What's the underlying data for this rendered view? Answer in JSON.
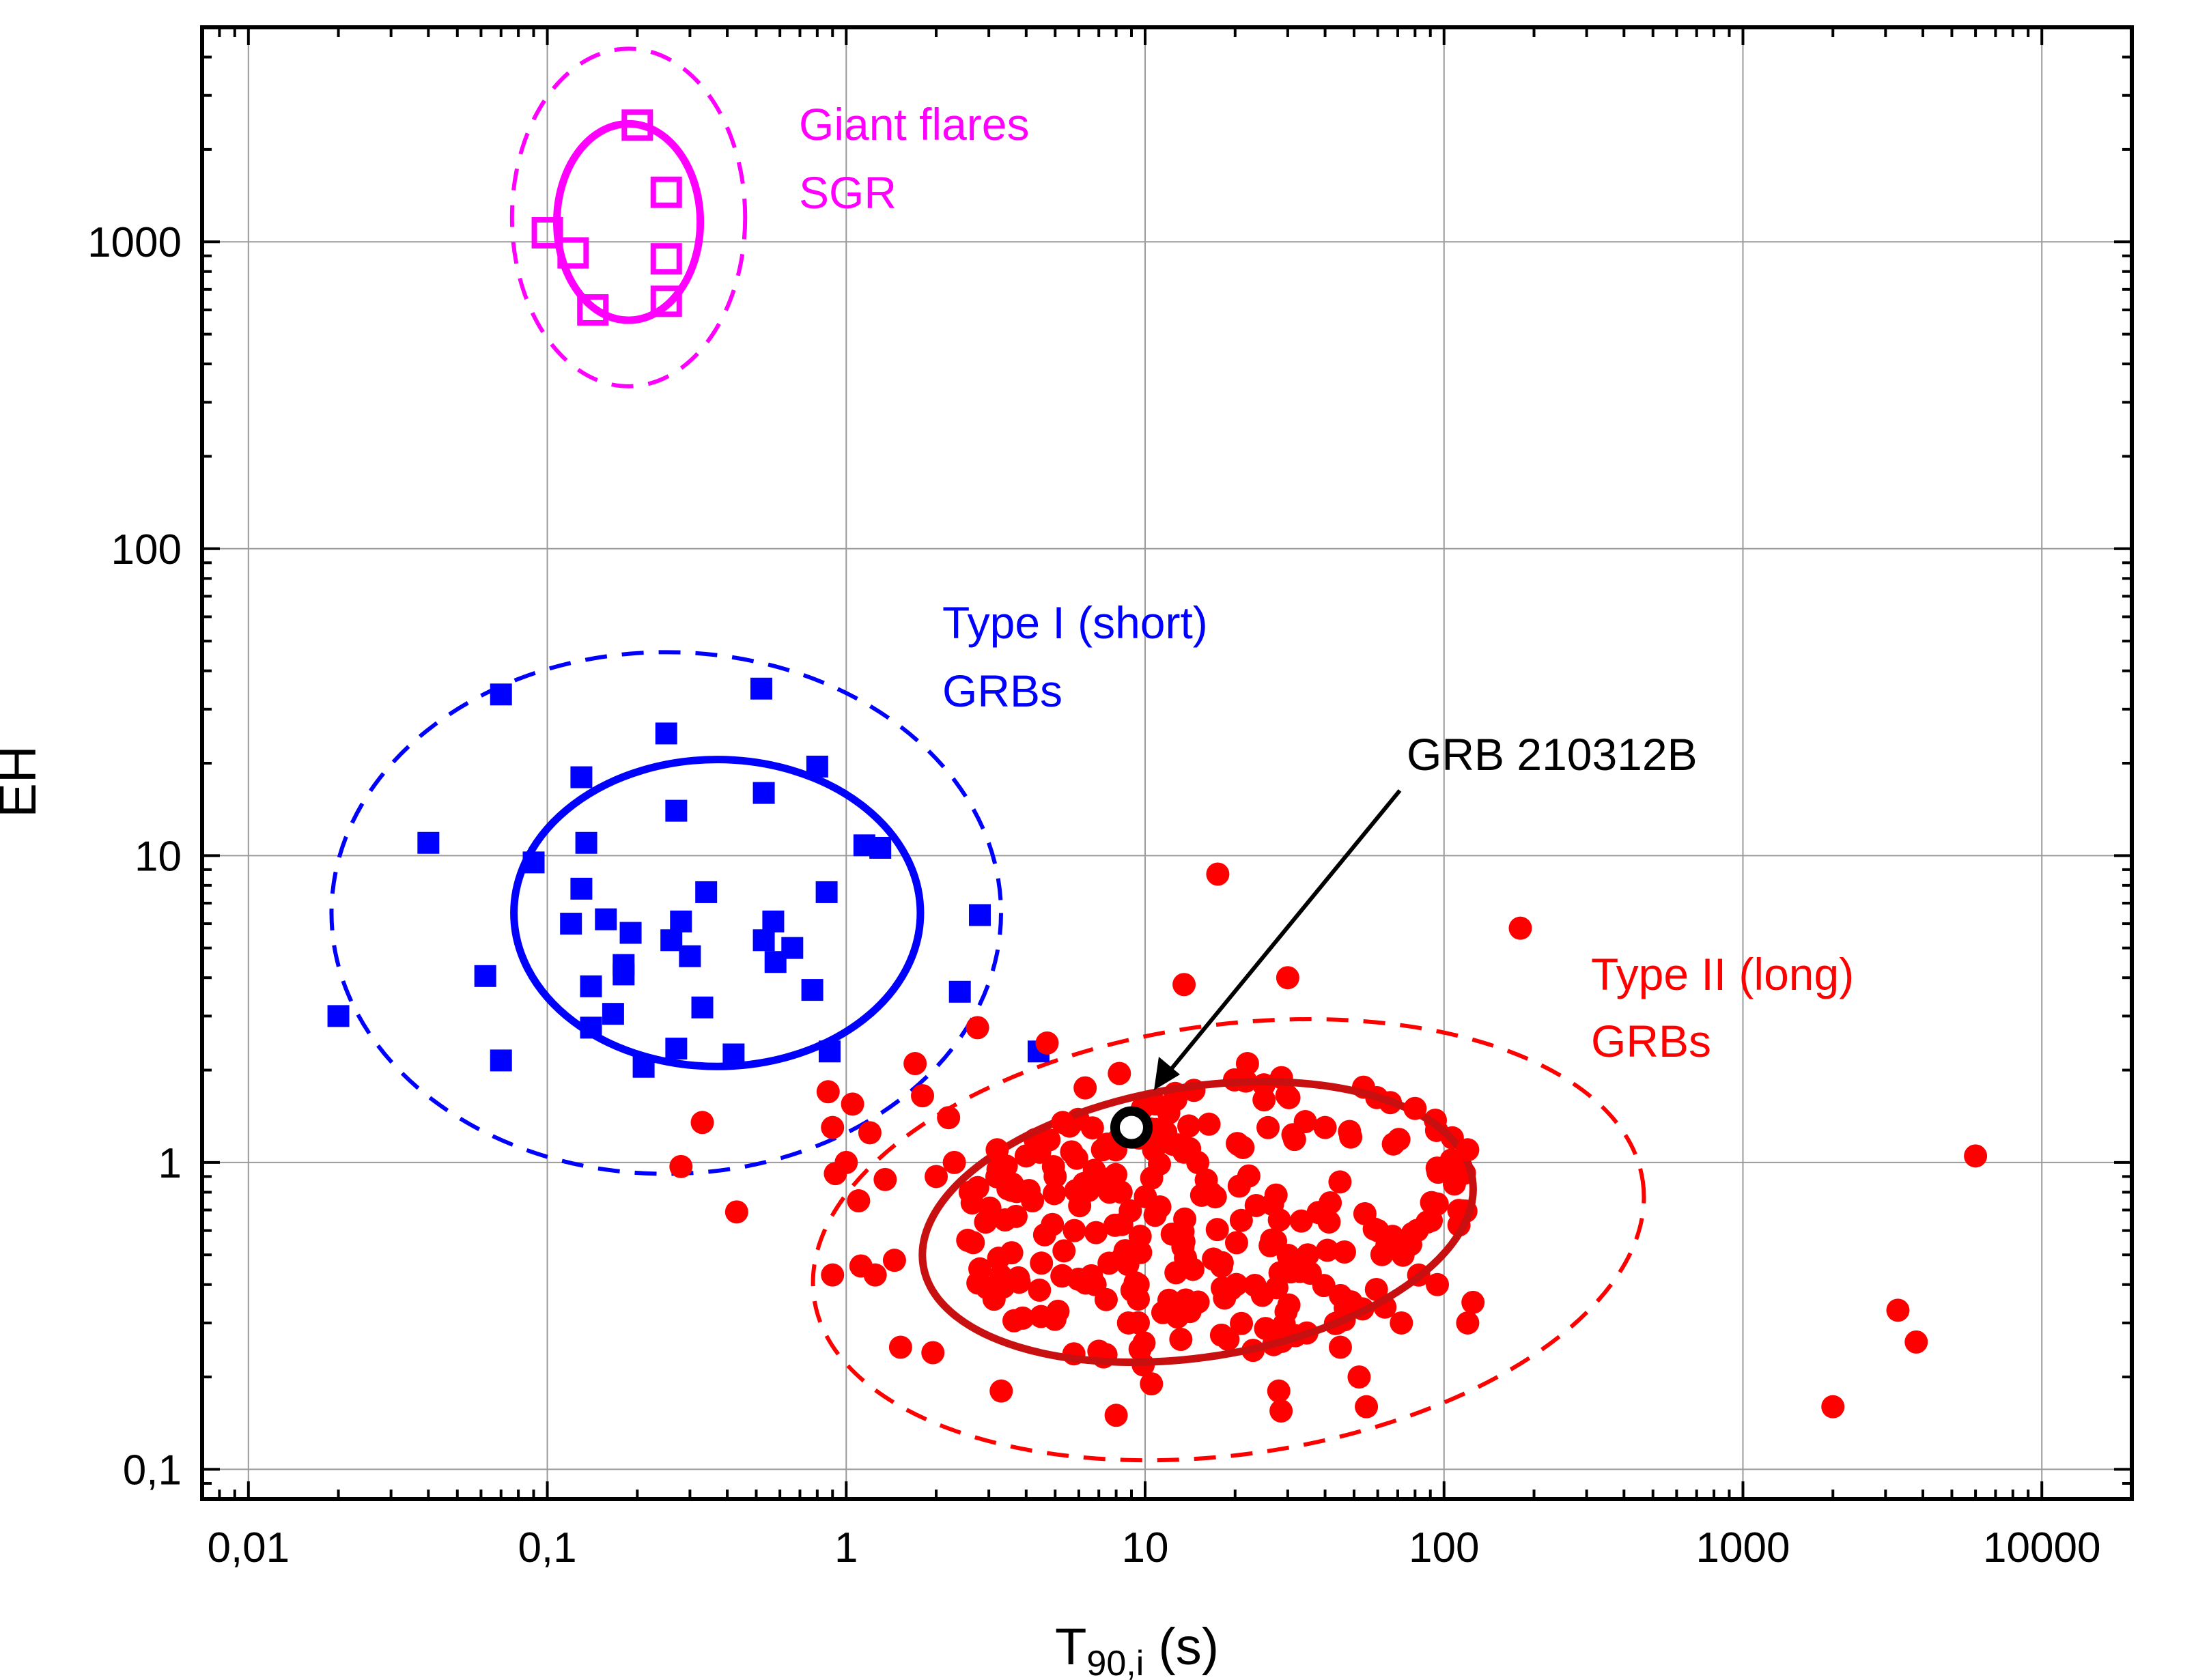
{
  "chart_data": {
    "type": "scatter",
    "xscale": "log",
    "yscale": "log",
    "xlim": [
      0.007,
      20000
    ],
    "ylim": [
      0.08,
      5000
    ],
    "grid": true,
    "xlabel_main": "T",
    "xlabel_sub": "90,i",
    "xlabel_unit": " (s)",
    "ylabel": "EH",
    "x_ticks": [
      {
        "value": 0.01,
        "label": "0,01"
      },
      {
        "value": 0.1,
        "label": "0,1"
      },
      {
        "value": 1,
        "label": "1"
      },
      {
        "value": 10,
        "label": "10"
      },
      {
        "value": 100,
        "label": "100"
      },
      {
        "value": 1000,
        "label": "1000"
      },
      {
        "value": 10000,
        "label": "10000"
      }
    ],
    "y_ticks": [
      {
        "value": 0.1,
        "label": "0,1"
      },
      {
        "value": 1,
        "label": "1"
      },
      {
        "value": 10,
        "label": "10"
      },
      {
        "value": 100,
        "label": "100"
      },
      {
        "value": 1000,
        "label": "1000"
      }
    ],
    "colors": {
      "sgr": "#ff00ff",
      "short": "#0000ff",
      "long": "#ff0000",
      "long_ellipse": "#c81010",
      "grb": "#000000"
    },
    "annotations": {
      "sgr_line1": "Giant flares",
      "sgr_line2": "SGR",
      "short_line1": "Type I (short)",
      "short_line2": "GRBs",
      "long_line1": "Type II (long)",
      "long_line2": "GRBs",
      "grb": "GRB 210312B"
    },
    "highlight_point": {
      "name": "GRB 210312B",
      "x": 9.0,
      "y": 1.3
    },
    "ellipses": [
      {
        "name": "sgr-1sigma",
        "series": "sgr",
        "center": [
          0.187,
          1160
        ],
        "rx_dex": 0.24,
        "ry_dex": 0.32,
        "angle_deg": 0,
        "style": "solid"
      },
      {
        "name": "sgr-2sigma",
        "series": "sgr",
        "center": [
          0.187,
          1200
        ],
        "rx_dex": 0.39,
        "ry_dex": 0.55,
        "angle_deg": 0,
        "style": "dashed"
      },
      {
        "name": "short-1sigma",
        "series": "short",
        "center": [
          0.37,
          6.5
        ],
        "rx_dex": 0.68,
        "ry_dex": 0.5,
        "angle_deg": 0,
        "style": "solid"
      },
      {
        "name": "short-2sigma",
        "series": "short",
        "center": [
          0.25,
          6.5
        ],
        "rx_dex": 1.12,
        "ry_dex": 0.85,
        "angle_deg": 0,
        "style": "dashed"
      },
      {
        "name": "long-1sigma",
        "series": "long",
        "center": [
          15,
          0.64
        ],
        "rx_dex": 0.93,
        "ry_dex": 0.44,
        "angle_deg": -9,
        "style": "solid"
      },
      {
        "name": "long-2sigma",
        "series": "long",
        "center": [
          19,
          0.56
        ],
        "rx_dex": 1.4,
        "ry_dex": 0.7,
        "angle_deg": -8,
        "style": "dashed"
      }
    ],
    "series": [
      {
        "name": "Giant flares SGR",
        "marker": "open-square",
        "points": [
          {
            "x": 0.2,
            "y": 2400
          },
          {
            "x": 0.25,
            "y": 1450
          },
          {
            "x": 0.1,
            "y": 1070
          },
          {
            "x": 0.122,
            "y": 920
          },
          {
            "x": 0.25,
            "y": 880
          },
          {
            "x": 0.25,
            "y": 640
          },
          {
            "x": 0.142,
            "y": 600
          }
        ]
      },
      {
        "name": "Type I (short) GRBs",
        "marker": "filled-square",
        "points": [
          {
            "x": 0.07,
            "y": 33.5
          },
          {
            "x": 0.52,
            "y": 35
          },
          {
            "x": 0.25,
            "y": 25
          },
          {
            "x": 0.8,
            "y": 19.5
          },
          {
            "x": 0.13,
            "y": 18
          },
          {
            "x": 0.53,
            "y": 16
          },
          {
            "x": 0.27,
            "y": 14
          },
          {
            "x": 0.04,
            "y": 11
          },
          {
            "x": 0.135,
            "y": 11
          },
          {
            "x": 1.15,
            "y": 10.8
          },
          {
            "x": 1.3,
            "y": 10.6
          },
          {
            "x": 0.09,
            "y": 9.5
          },
          {
            "x": 0.13,
            "y": 7.8
          },
          {
            "x": 0.34,
            "y": 7.6
          },
          {
            "x": 0.86,
            "y": 7.6
          },
          {
            "x": 2.8,
            "y": 6.4
          },
          {
            "x": 0.157,
            "y": 6.2
          },
          {
            "x": 0.28,
            "y": 6.1
          },
          {
            "x": 0.57,
            "y": 6.1
          },
          {
            "x": 0.12,
            "y": 6.0
          },
          {
            "x": 0.19,
            "y": 5.6
          },
          {
            "x": 0.26,
            "y": 5.3
          },
          {
            "x": 0.53,
            "y": 5.3
          },
          {
            "x": 0.66,
            "y": 5.0
          },
          {
            "x": 0.3,
            "y": 4.7
          },
          {
            "x": 0.18,
            "y": 4.4
          },
          {
            "x": 0.58,
            "y": 4.5
          },
          {
            "x": 0.18,
            "y": 4.1
          },
          {
            "x": 0.062,
            "y": 4.05
          },
          {
            "x": 0.14,
            "y": 3.75
          },
          {
            "x": 0.77,
            "y": 3.65
          },
          {
            "x": 2.4,
            "y": 3.6
          },
          {
            "x": 0.33,
            "y": 3.2
          },
          {
            "x": 0.166,
            "y": 3.05
          },
          {
            "x": 0.02,
            "y": 3.0
          },
          {
            "x": 0.14,
            "y": 2.75
          },
          {
            "x": 0.27,
            "y": 2.35
          },
          {
            "x": 0.88,
            "y": 2.3
          },
          {
            "x": 4.4,
            "y": 2.3
          },
          {
            "x": 0.42,
            "y": 2.25
          },
          {
            "x": 0.07,
            "y": 2.15
          },
          {
            "x": 0.21,
            "y": 2.05
          }
        ]
      },
      {
        "name": "Type II (long) GRBs",
        "marker": "filled-circle",
        "points": [
          {
            "x": 0.28,
            "y": 0.97
          },
          {
            "x": 0.33,
            "y": 1.35
          },
          {
            "x": 0.43,
            "y": 0.69
          },
          {
            "x": 0.87,
            "y": 1.7
          },
          {
            "x": 0.9,
            "y": 1.3
          },
          {
            "x": 1.0,
            "y": 1.0
          },
          {
            "x": 1.05,
            "y": 1.55
          },
          {
            "x": 1.2,
            "y": 1.25
          },
          {
            "x": 1.1,
            "y": 0.75
          },
          {
            "x": 0.92,
            "y": 0.92
          },
          {
            "x": 0.9,
            "y": 0.43
          },
          {
            "x": 1.12,
            "y": 0.46
          },
          {
            "x": 1.25,
            "y": 0.43
          },
          {
            "x": 1.35,
            "y": 0.88
          },
          {
            "x": 1.45,
            "y": 0.48
          },
          {
            "x": 1.52,
            "y": 0.25
          },
          {
            "x": 1.7,
            "y": 2.1
          },
          {
            "x": 1.8,
            "y": 1.65
          },
          {
            "x": 1.95,
            "y": 0.24
          },
          {
            "x": 2.0,
            "y": 0.9
          },
          {
            "x": 2.2,
            "y": 1.4
          },
          {
            "x": 2.3,
            "y": 1.0
          },
          {
            "x": 2.6,
            "y": 0.8
          },
          {
            "x": 2.75,
            "y": 2.75
          },
          {
            "x": 2.8,
            "y": 0.45
          },
          {
            "x": 3.2,
            "y": 1.1
          },
          {
            "x": 3.3,
            "y": 0.18
          },
          {
            "x": 3.4,
            "y": 0.65
          },
          {
            "x": 3.6,
            "y": 0.85
          },
          {
            "x": 4.0,
            "y": 1.05
          },
          {
            "x": 4.2,
            "y": 0.75
          },
          {
            "x": 4.5,
            "y": 0.47
          },
          {
            "x": 4.7,
            "y": 2.45
          },
          {
            "x": 5.0,
            "y": 0.9
          },
          {
            "x": 5.3,
            "y": 1.35
          },
          {
            "x": 5.8,
            "y": 0.6
          },
          {
            "x": 6.3,
            "y": 1.75
          },
          {
            "x": 6.8,
            "y": 0.4
          },
          {
            "x": 7.2,
            "y": 1.1
          },
          {
            "x": 7.6,
            "y": 0.8
          },
          {
            "x": 8.0,
            "y": 0.15
          },
          {
            "x": 8.2,
            "y": 1.95
          },
          {
            "x": 8.8,
            "y": 0.3
          },
          {
            "x": 10.5,
            "y": 0.19
          },
          {
            "x": 12.0,
            "y": 1.45
          },
          {
            "x": 13.5,
            "y": 3.8
          },
          {
            "x": 15.0,
            "y": 1.0
          },
          {
            "x": 17.5,
            "y": 8.7
          },
          {
            "x": 22.0,
            "y": 2.1
          },
          {
            "x": 25.0,
            "y": 1.6
          },
          {
            "x": 28.0,
            "y": 0.18
          },
          {
            "x": 28.5,
            "y": 0.155
          },
          {
            "x": 30.0,
            "y": 4.0
          },
          {
            "x": 35.0,
            "y": 0.5
          },
          {
            "x": 40.0,
            "y": 1.3
          },
          {
            "x": 45.0,
            "y": 0.25
          },
          {
            "x": 52.0,
            "y": 0.2
          },
          {
            "x": 55.0,
            "y": 0.16
          },
          {
            "x": 60.0,
            "y": 0.6
          },
          {
            "x": 72.0,
            "y": 0.3
          },
          {
            "x": 80.0,
            "y": 1.5
          },
          {
            "x": 95.0,
            "y": 0.4
          },
          {
            "x": 120.0,
            "y": 1.1
          },
          {
            "x": 125.0,
            "y": 0.35
          },
          {
            "x": 120.0,
            "y": 0.3
          },
          {
            "x": 180.0,
            "y": 5.8
          },
          {
            "x": 2000.0,
            "y": 0.16
          },
          {
            "x": 3300.0,
            "y": 0.33
          },
          {
            "x": 3800.0,
            "y": 0.26
          },
          {
            "x": 6000.0,
            "y": 1.05
          }
        ]
      }
    ]
  }
}
